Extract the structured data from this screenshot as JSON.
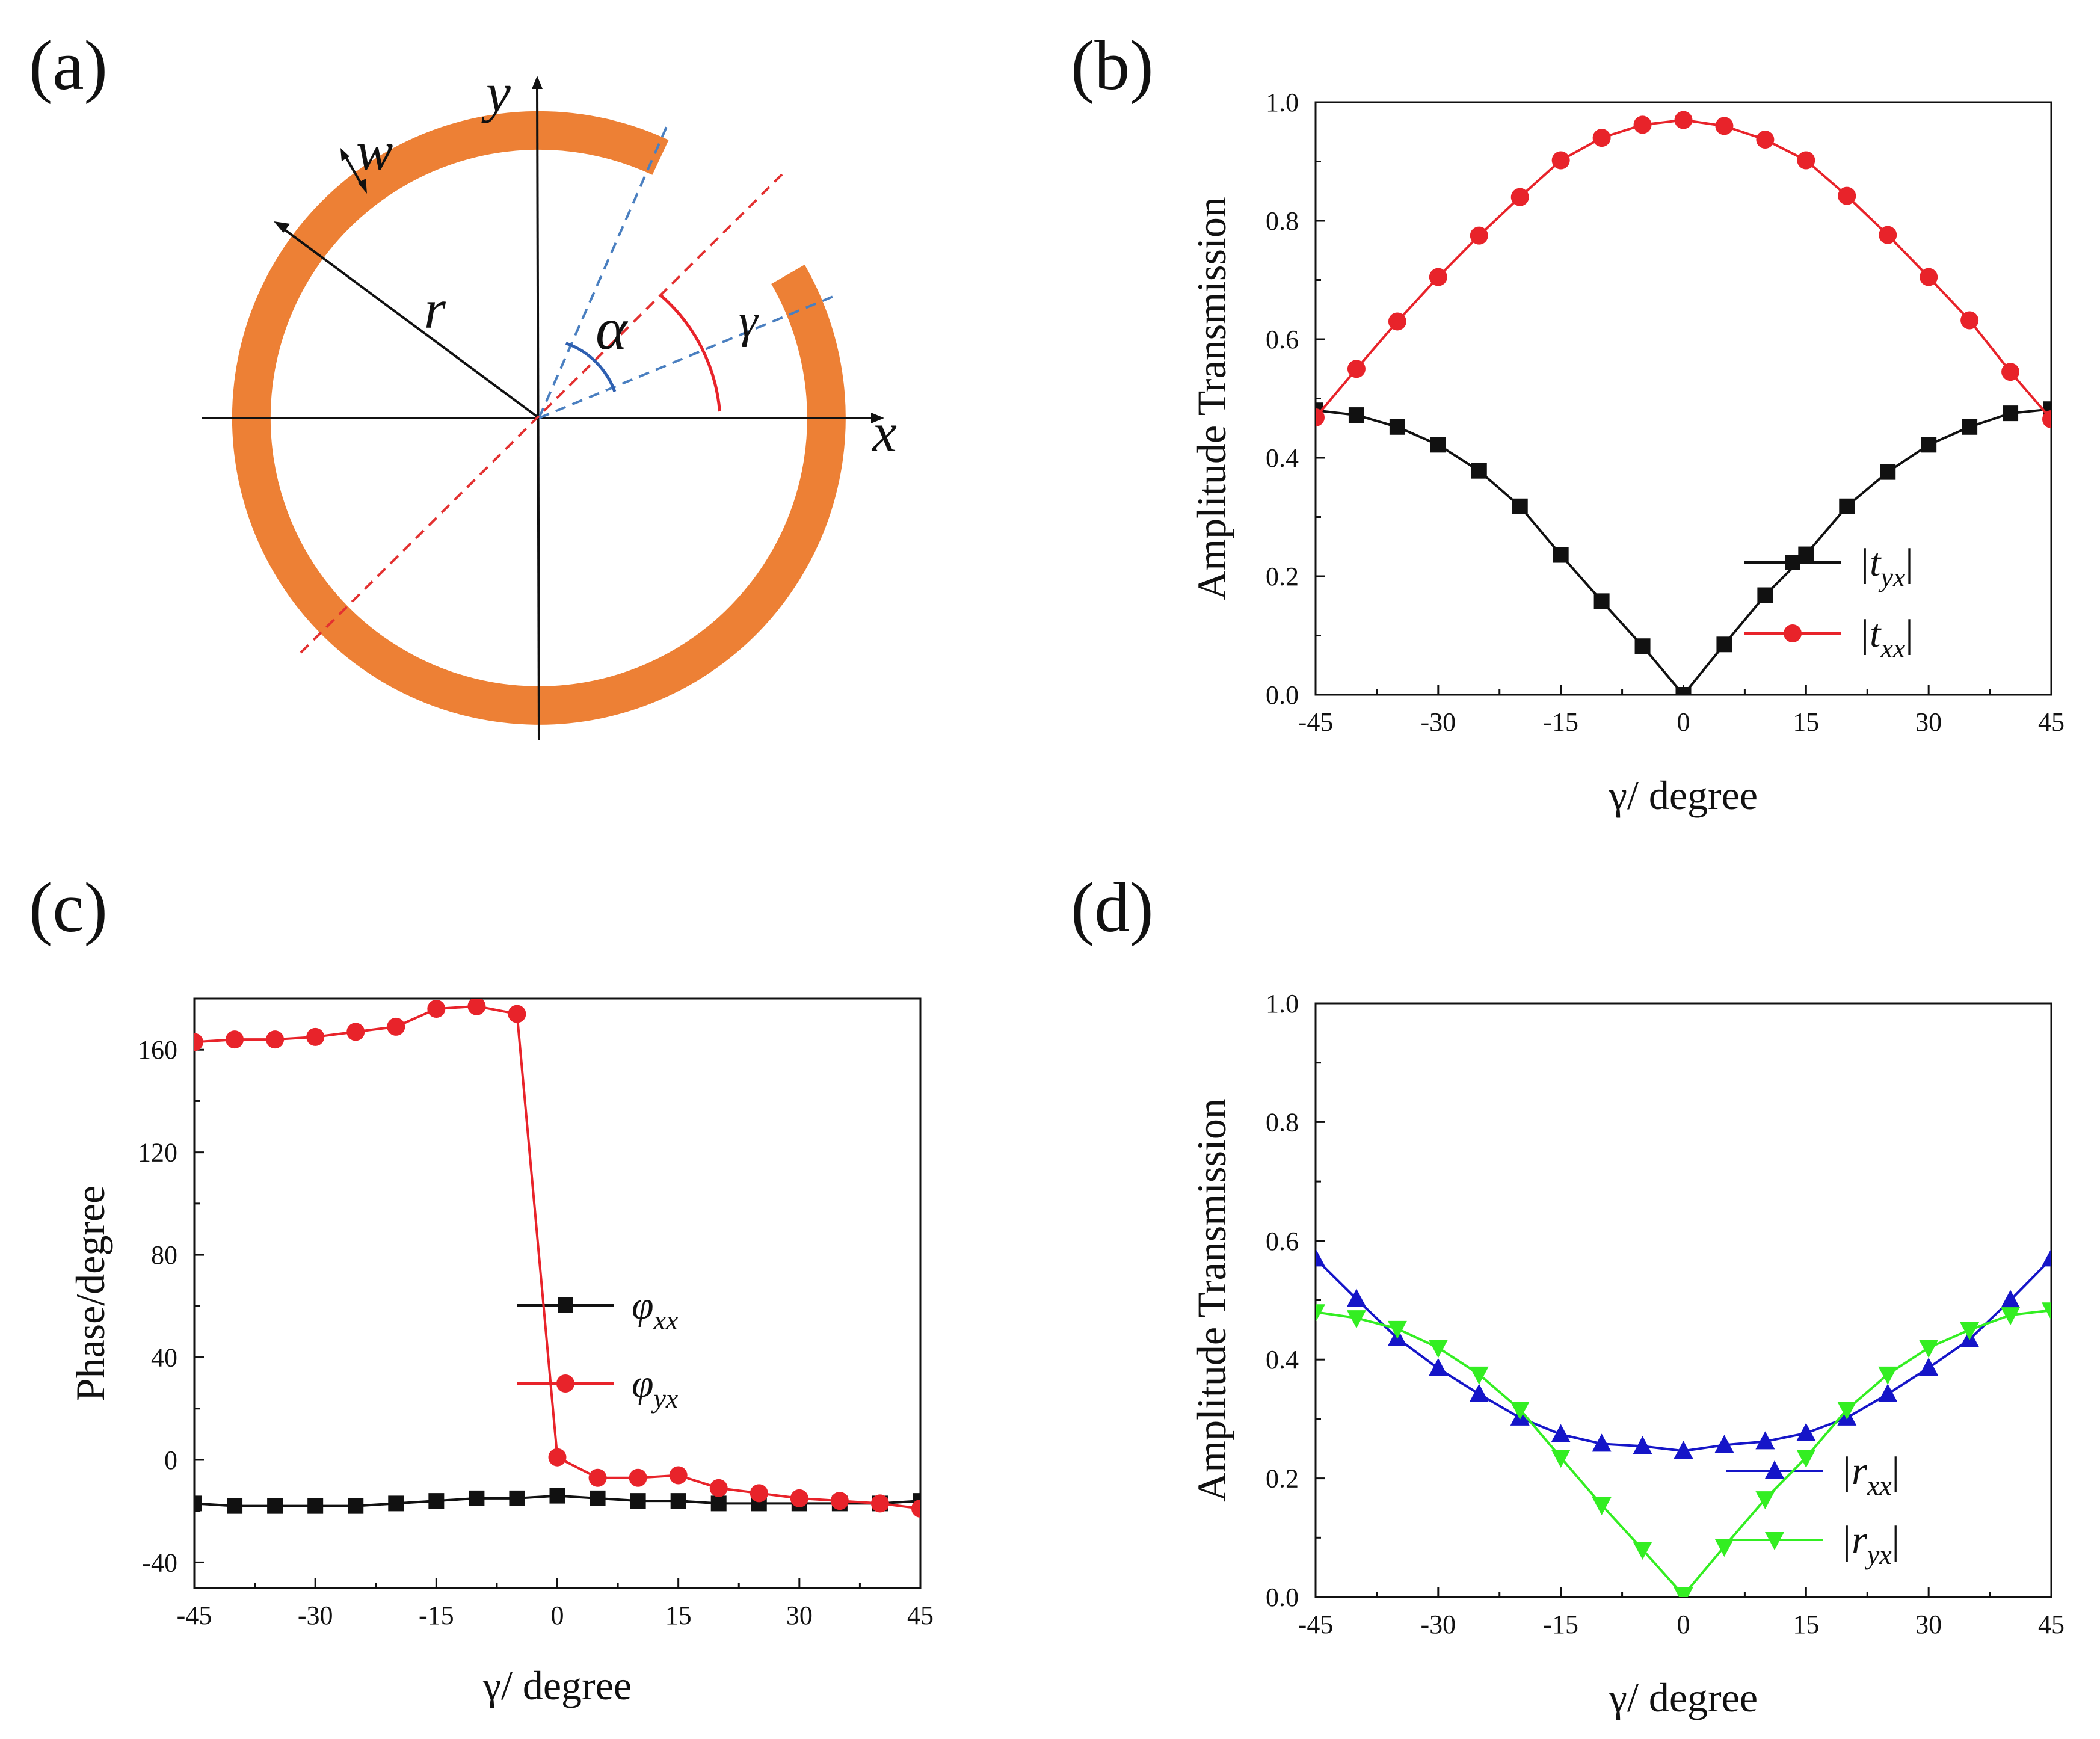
{
  "colors": {
    "ring": "#ED8035",
    "black": "#111111",
    "red": "#E8232A",
    "blue": "#1515C8",
    "green": "#33EE22",
    "dash_blue": "#4A7FC0",
    "dash_red": "#E33030",
    "arc_blue": "#2E5FB0"
  },
  "panels": {
    "a": {
      "label": "(a)",
      "symbols": {
        "x": "x",
        "y": "y",
        "w": "w",
        "r": "r",
        "alpha": "α",
        "gamma": "γ"
      }
    },
    "b": {
      "label": "(b)"
    },
    "c": {
      "label": "(c)"
    },
    "d": {
      "label": "(d)"
    }
  },
  "chart_data": [
    {
      "id": "b",
      "type": "line",
      "xlabel": "γ/ degree",
      "ylabel": "Amplitude Transmission",
      "xlim": [
        -45,
        45
      ],
      "ylim": [
        0,
        1.0
      ],
      "xticks": [
        "-45",
        "-30",
        "-15",
        "0",
        "15",
        "30",
        "45"
      ],
      "yticks": [
        "0.0",
        "0.2",
        "0.4",
        "0.6",
        "0.8",
        "1.0"
      ],
      "x": [
        -45,
        -40,
        -35,
        -30,
        -25,
        -20,
        -15,
        -10,
        -5,
        0,
        5,
        10,
        15,
        20,
        25,
        30,
        35,
        40,
        45
      ],
      "legend_position": "bottom-right",
      "series": [
        {
          "name": "|t_yx|",
          "legend_main": "|t",
          "legend_sub": "yx",
          "legend_end": "|",
          "color_key": "black",
          "marker": "square",
          "values": [
            0.48,
            0.472,
            0.452,
            0.422,
            0.378,
            0.318,
            0.236,
            0.158,
            0.082,
            0.0,
            0.085,
            0.168,
            0.237,
            0.318,
            0.376,
            0.422,
            0.452,
            0.475,
            0.482
          ]
        },
        {
          "name": "|t_xx|",
          "legend_main": "|t",
          "legend_sub": "xx",
          "legend_end": "|",
          "color_key": "red",
          "marker": "circle",
          "values": [
            0.468,
            0.55,
            0.63,
            0.705,
            0.775,
            0.84,
            0.902,
            0.94,
            0.962,
            0.97,
            0.96,
            0.937,
            0.902,
            0.842,
            0.776,
            0.705,
            0.632,
            0.545,
            0.465
          ]
        }
      ]
    },
    {
      "id": "c",
      "type": "line",
      "xlabel": "γ/ degree",
      "ylabel": "Phase/degree",
      "xlim": [
        -45,
        45
      ],
      "ylim": [
        -50,
        180
      ],
      "xticks": [
        "-45",
        "-30",
        "-15",
        "0",
        "15",
        "30",
        "45"
      ],
      "yticks": [
        "-40",
        "0",
        "40",
        "80",
        "120",
        "160"
      ],
      "x": [
        -45,
        -40,
        -35,
        -30,
        -25,
        -20,
        -15,
        -10,
        -5,
        0,
        5,
        10,
        15,
        20,
        25,
        30,
        35,
        40,
        45
      ],
      "legend_position": "right",
      "series": [
        {
          "name": "φ_xx",
          "legend_main": "φ",
          "legend_sub": "xx",
          "legend_end": "",
          "color_key": "black",
          "marker": "square",
          "values": [
            -17,
            -18,
            -18,
            -18,
            -18,
            -17,
            -16,
            -15,
            -15,
            -14,
            -15,
            -16,
            -16,
            -17,
            -17,
            -17,
            -17,
            -17,
            -16
          ]
        },
        {
          "name": "φ_yx",
          "legend_main": "φ",
          "legend_sub": "yx",
          "legend_end": "",
          "color_key": "red",
          "marker": "circle",
          "values": [
            163,
            164,
            164,
            165,
            167,
            169,
            176,
            177,
            174,
            1,
            -7,
            -7,
            -6,
            -11,
            -13,
            -15,
            -16,
            -17,
            -19
          ]
        }
      ]
    },
    {
      "id": "d",
      "type": "line",
      "xlabel": "γ/ degree",
      "ylabel": "Amplitude Transmission",
      "xlim": [
        -45,
        45
      ],
      "ylim": [
        0,
        1.0
      ],
      "xticks": [
        "-45",
        "-30",
        "-15",
        "0",
        "15",
        "30",
        "45"
      ],
      "yticks": [
        "0.0",
        "0.2",
        "0.4",
        "0.6",
        "0.8",
        "1.0"
      ],
      "x": [
        -45,
        -40,
        -35,
        -30,
        -25,
        -20,
        -15,
        -10,
        -5,
        0,
        5,
        10,
        15,
        20,
        25,
        30,
        35,
        40,
        45
      ],
      "legend_position": "bottom-right",
      "series": [
        {
          "name": "|r_xx|",
          "legend_main": "|r",
          "legend_sub": "xx",
          "legend_end": "|",
          "color_key": "blue",
          "marker": "triangle-up",
          "values": [
            0.57,
            0.502,
            0.436,
            0.385,
            0.342,
            0.302,
            0.274,
            0.258,
            0.254,
            0.246,
            0.256,
            0.262,
            0.276,
            0.302,
            0.342,
            0.386,
            0.434,
            0.5,
            0.57
          ]
        },
        {
          "name": "|r_yx|",
          "legend_main": "|r",
          "legend_sub": "yx",
          "legend_end": "|",
          "color_key": "green",
          "marker": "triangle-down",
          "values": [
            0.48,
            0.47,
            0.452,
            0.42,
            0.375,
            0.316,
            0.235,
            0.155,
            0.08,
            0.003,
            0.085,
            0.165,
            0.235,
            0.316,
            0.375,
            0.42,
            0.45,
            0.475,
            0.483
          ]
        }
      ]
    }
  ]
}
